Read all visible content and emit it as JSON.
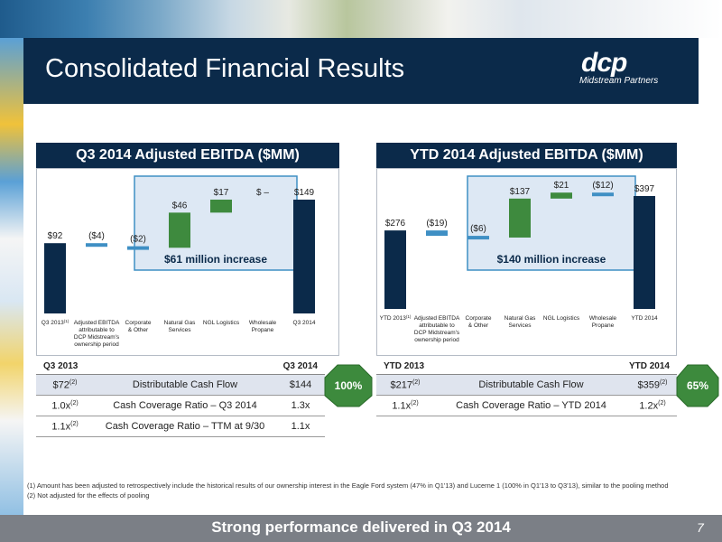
{
  "title": "Consolidated Financial Results",
  "logo": {
    "mark": "dcp",
    "tagline": "Midstream Partners"
  },
  "colors": {
    "navy": "#0b2a4a",
    "green": "#3e8a3e",
    "light_blue": "#3f8fc4",
    "badge_green": "#3d8a3d",
    "highlight_border": "#3f8fc4",
    "highlight_fill": "#dde8f4"
  },
  "chart_data": [
    {
      "type": "bar",
      "title": "Q3 2014 Adjusted EBITDA ($MM)",
      "categories": [
        "Q3 2013",
        "Adjusted EBITDA attributable to DCP Midstream's ownership period",
        "Corporate & Other",
        "Natural Gas Services",
        "NGL Logistics",
        "Wholesale Propane",
        "Q3 2014"
      ],
      "category_superscripts": [
        "(1)",
        "",
        "",
        "",
        "",
        "",
        ""
      ],
      "values": [
        92,
        -4,
        -2,
        46,
        17,
        0,
        149
      ],
      "data_labels": [
        "$92",
        "($4)",
        "($2)",
        "$46",
        "$17",
        "$ –",
        "$149"
      ],
      "roles": [
        "total",
        "delta",
        "delta",
        "delta",
        "delta",
        "delta",
        "total"
      ],
      "annotation": "$61 million increase"
    },
    {
      "type": "bar",
      "title": "YTD 2014 Adjusted EBITDA ($MM)",
      "categories": [
        "YTD 2013",
        "Adjusted EBITDA attributable to DCP Midstream's ownership period",
        "Corporate & Other",
        "Natural Gas Services",
        "NGL Logistics",
        "Wholesale Propane",
        "YTD 2014"
      ],
      "category_superscripts": [
        "(1)",
        "",
        "",
        "",
        "",
        "",
        ""
      ],
      "values": [
        276,
        -19,
        -6,
        137,
        21,
        -12,
        397
      ],
      "data_labels": [
        "$276",
        "($19)",
        "($6)",
        "$137",
        "$21",
        "($12)",
        "$397"
      ],
      "roles": [
        "total",
        "delta",
        "delta",
        "delta",
        "delta",
        "delta",
        "total"
      ],
      "annotation": "$140 million increase"
    }
  ],
  "tables": [
    {
      "left_header": "Q3 2013",
      "right_header": "Q3 2014",
      "rows": [
        {
          "left": "$72",
          "left_sup": "(2)",
          "label": "Distributable Cash Flow",
          "right": "$144",
          "right_sup": ""
        },
        {
          "left": "1.0x",
          "left_sup": "(2)",
          "label": "Cash Coverage Ratio – Q3 2014",
          "right": "1.3x",
          "right_sup": ""
        },
        {
          "left": "1.1x",
          "left_sup": "(2)",
          "label": "Cash Coverage Ratio – TTM at 9/30",
          "right": "1.1x",
          "right_sup": ""
        }
      ],
      "badge": "100%"
    },
    {
      "left_header": "YTD 2013",
      "right_header": "YTD 2014",
      "rows": [
        {
          "left": "$217",
          "left_sup": "(2)",
          "label": "Distributable Cash Flow",
          "right": "$359",
          "right_sup": "(2)"
        },
        {
          "left": "1.1x",
          "left_sup": "(2)",
          "label": "Cash Coverage Ratio – YTD 2014",
          "right": "1.2x",
          "right_sup": "(2)"
        }
      ],
      "badge": "65%"
    }
  ],
  "footnotes": [
    "(1)   Amount has been adjusted to retrospectively include the historical results of our ownership interest in the Eagle Ford system (47% in Q1'13) and Lucerne 1 (100% in Q1'13 to Q3'13), similar to the pooling method",
    "(2)   Not adjusted for the effects of pooling"
  ],
  "footer": {
    "banner": "Strong performance delivered in Q3 2014",
    "page": "7"
  }
}
